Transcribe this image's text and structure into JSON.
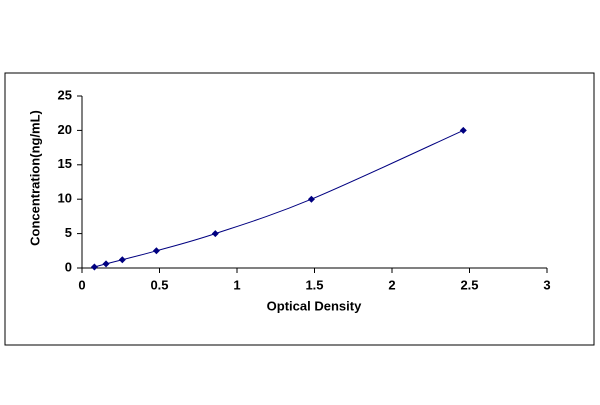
{
  "chart_data": {
    "type": "scatter",
    "x_label": "Optical Density",
    "y_label": "Concentration(ng/mL)",
    "x": [
      0.08,
      0.155,
      0.26,
      0.48,
      0.86,
      1.48,
      2.46
    ],
    "values": [
      0.15,
      0.6,
      1.2,
      2.5,
      5,
      10,
      20
    ],
    "color": "#000080",
    "smooth_line": true,
    "xlim": [
      0,
      3
    ],
    "xticks": [
      0,
      0.5,
      1,
      1.5,
      2,
      2.5,
      3
    ],
    "ylim": [
      0,
      25
    ],
    "yticks": [
      0,
      5,
      10,
      15,
      20,
      25
    ],
    "grid": false
  }
}
